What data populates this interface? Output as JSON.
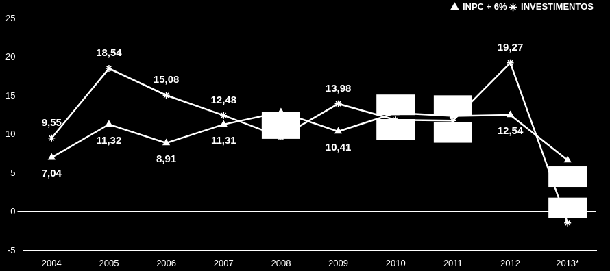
{
  "chart_data": {
    "type": "line",
    "categories": [
      "2004",
      "2005",
      "2006",
      "2007",
      "2008",
      "2009",
      "2010",
      "2011",
      "2012",
      "2013*"
    ],
    "series": [
      {
        "name": "INPC + 6%",
        "color": "#ffffff",
        "marker": "triangle",
        "values": [
          7.04,
          11.32,
          8.91,
          11.31,
          12.9,
          10.41,
          12.8,
          12.4,
          12.54,
          6.7
        ],
        "value_labels": [
          "7,04",
          "11,32",
          "8,91",
          "11,31",
          null,
          "10,41",
          null,
          null,
          "12,54",
          null
        ]
      },
      {
        "name": "INVESTIMENTOS",
        "color": "#ffffff",
        "marker": "star",
        "values": [
          9.55,
          18.54,
          15.08,
          12.48,
          9.7,
          13.98,
          11.9,
          11.8,
          19.27,
          -1.4
        ],
        "value_labels": [
          "9,55",
          "18,54",
          "15,08",
          "12,48",
          null,
          "13,98",
          null,
          null,
          "19,27",
          null
        ]
      }
    ],
    "ylim": [
      -5,
      25
    ],
    "yticks": [
      -5,
      0,
      5,
      10,
      15,
      20,
      25
    ],
    "grid": false,
    "legend": "upper right",
    "data_labels": true
  }
}
